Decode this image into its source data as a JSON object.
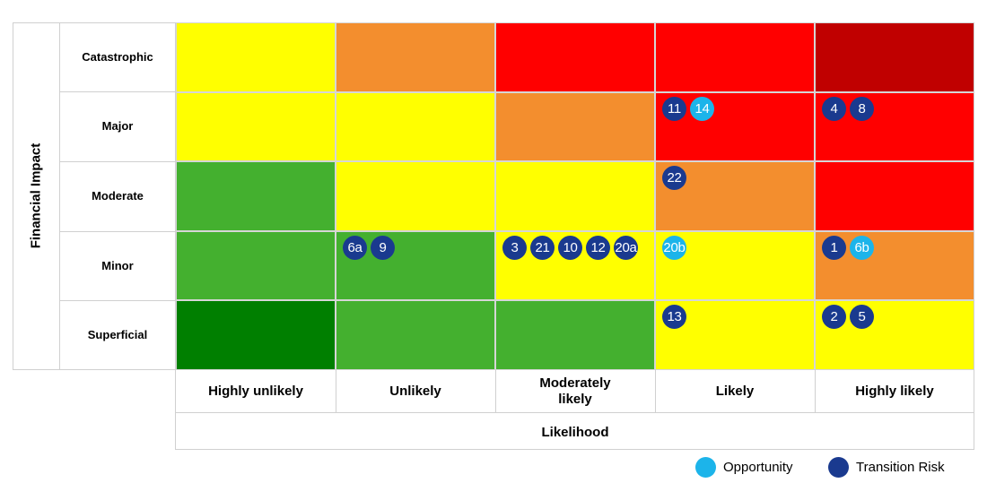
{
  "y_axis_title": "Financial Impact",
  "x_axis_title": "Likelihood",
  "rows": [
    "Catastrophic",
    "Major",
    "Moderate",
    "Minor",
    "Superficial"
  ],
  "columns": [
    "Highly unlikely",
    "Unlikely",
    "Moderately likely",
    "Likely",
    "Highly likely"
  ],
  "colors": {
    "dark_green": "#007f00",
    "green": "#44b02f",
    "yellow": "#ffff00",
    "orange": "#f38e2e",
    "red": "#ff0000",
    "dark_red": "#c00000",
    "opportunity": "#1cb4ea",
    "transition_risk": "#1a3a8f"
  },
  "grid_colors": [
    [
      "yellow",
      "orange",
      "red",
      "red",
      "dark_red"
    ],
    [
      "yellow",
      "yellow",
      "orange",
      "red",
      "red"
    ],
    [
      "green",
      "yellow",
      "yellow",
      "orange",
      "red"
    ],
    [
      "green",
      "green",
      "yellow",
      "yellow",
      "orange"
    ],
    [
      "dark_green",
      "green",
      "green",
      "yellow",
      "yellow"
    ]
  ],
  "markers": [
    {
      "row": 1,
      "col": 3,
      "items": [
        {
          "label": "11",
          "kind": "transition"
        },
        {
          "label": "14",
          "kind": "opportunity"
        }
      ]
    },
    {
      "row": 1,
      "col": 4,
      "items": [
        {
          "label": "4",
          "kind": "transition"
        },
        {
          "label": "8",
          "kind": "transition"
        }
      ]
    },
    {
      "row": 2,
      "col": 3,
      "items": [
        {
          "label": "22",
          "kind": "transition"
        }
      ]
    },
    {
      "row": 3,
      "col": 1,
      "items": [
        {
          "label": "6a",
          "kind": "transition"
        },
        {
          "label": "9",
          "kind": "transition"
        }
      ]
    },
    {
      "row": 3,
      "col": 2,
      "items": [
        {
          "label": "3",
          "kind": "transition"
        },
        {
          "label": "21",
          "kind": "transition"
        },
        {
          "label": "10",
          "kind": "transition"
        },
        {
          "label": "12",
          "kind": "transition"
        },
        {
          "label": "20a",
          "kind": "transition"
        }
      ]
    },
    {
      "row": 3,
      "col": 3,
      "items": [
        {
          "label": "20b",
          "kind": "opportunity"
        }
      ]
    },
    {
      "row": 3,
      "col": 4,
      "items": [
        {
          "label": "1",
          "kind": "transition"
        },
        {
          "label": "6b",
          "kind": "opportunity"
        }
      ]
    },
    {
      "row": 4,
      "col": 3,
      "items": [
        {
          "label": "13",
          "kind": "transition"
        }
      ]
    },
    {
      "row": 4,
      "col": 4,
      "items": [
        {
          "label": "2",
          "kind": "transition"
        },
        {
          "label": "5",
          "kind": "transition"
        }
      ]
    }
  ],
  "legend": [
    {
      "label": "Opportunity",
      "kind": "opportunity"
    },
    {
      "label": "Transition Risk",
      "kind": "transition"
    }
  ]
}
